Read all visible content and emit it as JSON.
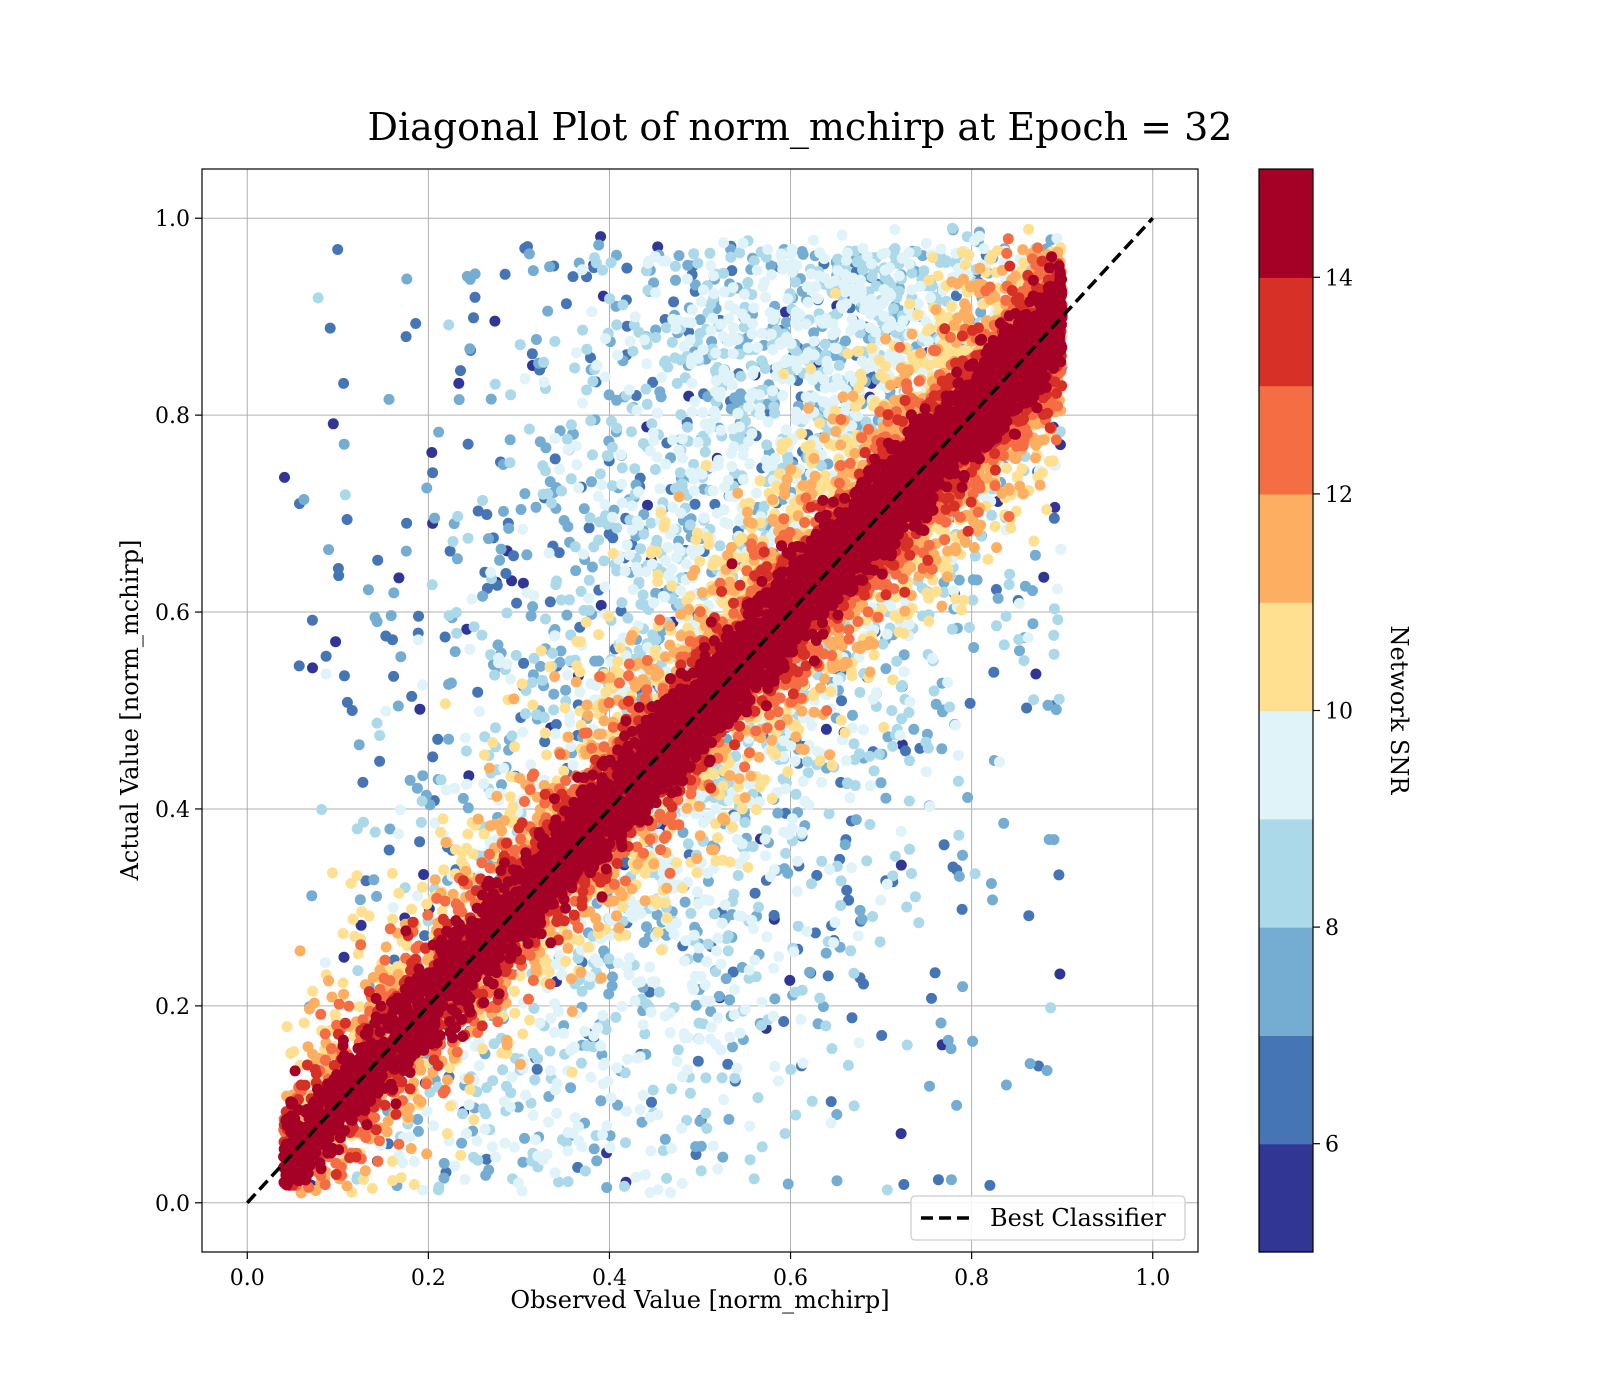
{
  "chart_data": {
    "type": "scatter",
    "title": "Diagonal Plot of norm_mchirp at Epoch = 32",
    "xlabel": "Observed Value [norm_mchirp]",
    "ylabel": "Actual Value [norm_mchirp]",
    "xlim": [
      -0.05,
      1.05
    ],
    "ylim": [
      -0.05,
      1.05
    ],
    "xticks": [
      0.0,
      0.2,
      0.4,
      0.6,
      0.8,
      1.0
    ],
    "yticks": [
      0.0,
      0.2,
      0.4,
      0.6,
      0.8,
      1.0
    ],
    "xtick_labels": [
      "0.0",
      "0.2",
      "0.4",
      "0.6",
      "0.8",
      "1.0"
    ],
    "ytick_labels": [
      "0.0",
      "0.2",
      "0.4",
      "0.6",
      "0.8",
      "1.0"
    ],
    "grid": true,
    "reference_line": {
      "name": "Best Classifier",
      "x": [
        0.0,
        1.0
      ],
      "y": [
        0.0,
        1.0
      ],
      "style": "dashed",
      "color": "#000000"
    },
    "legend": {
      "position": "lower-right",
      "entries": [
        "Best Classifier"
      ]
    },
    "colorbar": {
      "label": "Network SNR",
      "min": 5,
      "max": 15,
      "ticks": [
        6,
        8,
        10,
        12,
        14
      ],
      "tick_labels": [
        "6",
        "8",
        "10",
        "12",
        "14"
      ],
      "colors": [
        "#313695",
        "#4575b4",
        "#74add1",
        "#abd9e9",
        "#e0f3f8",
        "#fee090",
        "#fdae61",
        "#f46d43",
        "#d73027",
        "#a50026"
      ]
    },
    "scatter_description": {
      "approx_points": 20000,
      "color_variable": "Network SNR",
      "x_range": [
        0.04,
        0.9
      ],
      "y_range": [
        0.0,
        1.0
      ]
    }
  }
}
